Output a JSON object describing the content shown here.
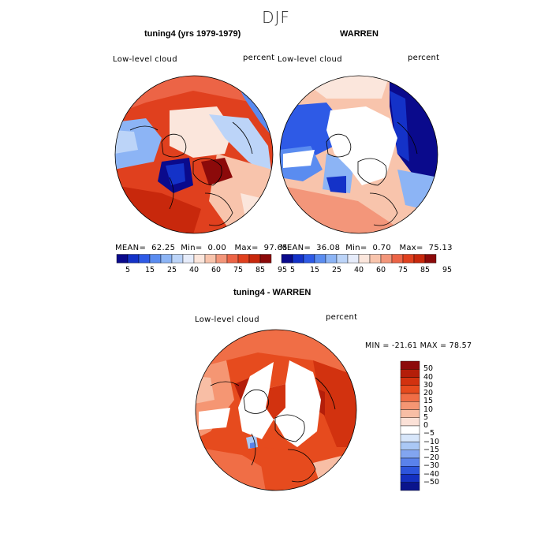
{
  "figure": {
    "season": "DJF"
  },
  "top_left": {
    "title": "tuning4 (yrs 1979-1979)",
    "variable": "Low-level cloud",
    "units": "percent",
    "stats": {
      "mean_label": "MEAN=",
      "mean": "62.25",
      "min_label": "Min=",
      "min": "0.00",
      "max_label": "Max=",
      "max": "97.65"
    }
  },
  "top_right": {
    "title": "WARREN",
    "variable": "Low-level cloud",
    "units": "percent",
    "stats": {
      "mean_label": "MEAN=",
      "mean": "36.08",
      "min_label": "Min=",
      "min": "0.70",
      "max_label": "Max=",
      "max": "75.13"
    }
  },
  "abs_colorbar": {
    "ticks": [
      "5",
      "15",
      "25",
      "40",
      "60",
      "75",
      "85",
      "95"
    ],
    "colors": [
      "#0a0a8c",
      "#1432c8",
      "#2e5ae6",
      "#5a8cf0",
      "#8cb4f5",
      "#bcd4f8",
      "#e6ecfa",
      "#fbe6dc",
      "#f8c4ac",
      "#f3967a",
      "#ec6446",
      "#e0401e",
      "#c8280c",
      "#8c0a0a"
    ]
  },
  "bottom": {
    "title": "tuning4 - WARREN",
    "variable": "Low-level cloud",
    "units": "percent",
    "minmax_text": "MIN = -21.61 MAX =  78.57"
  },
  "diff_colorbar": {
    "labels": [
      "50",
      "40",
      "30",
      "20",
      "15",
      "10",
      "5",
      "0",
      "−5",
      "−10",
      "−15",
      "−20",
      "−30",
      "−40",
      "−50"
    ],
    "colors": [
      "#8c0a0a",
      "#b41e0a",
      "#d2320f",
      "#e64b1e",
      "#f06e46",
      "#f59673",
      "#f8bea5",
      "#fbe1d7",
      "#ffffff",
      "#d7e6fa",
      "#aac8f5",
      "#82a5f0",
      "#5a82eb",
      "#2d55dc",
      "#1430c0",
      "#0a148c"
    ]
  },
  "map_colors": {
    "deep_red": "#9b1408",
    "red": "#d2320f",
    "orange_red": "#ec6446",
    "salmon": "#f3967a",
    "light_salmon": "#f8c4ac",
    "pale": "#fbe6dc",
    "pale_blue": "#bcd4f8",
    "light_blue": "#8cb4f5",
    "blue": "#2e5ae6",
    "deep_blue": "#0a0a8c"
  }
}
